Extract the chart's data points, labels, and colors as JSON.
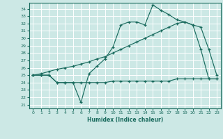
{
  "title": "",
  "xlabel": "Humidex (Indice chaleur)",
  "bg_color": "#cce8e5",
  "line_color": "#1a6b5e",
  "grid_color": "#ffffff",
  "xlim": [
    -0.5,
    23.5
  ],
  "ylim": [
    20.5,
    34.8
  ],
  "yticks": [
    21,
    22,
    23,
    24,
    25,
    26,
    27,
    28,
    29,
    30,
    31,
    32,
    33,
    34
  ],
  "xticks": [
    0,
    1,
    2,
    3,
    4,
    5,
    6,
    7,
    8,
    9,
    10,
    11,
    12,
    13,
    14,
    15,
    16,
    17,
    18,
    19,
    20,
    21,
    22,
    23
  ],
  "series1_x": [
    0,
    1,
    2,
    3,
    4,
    5,
    6,
    7,
    8,
    9,
    10,
    11,
    12,
    13,
    14,
    15,
    16,
    17,
    18,
    19,
    20,
    21,
    22,
    23
  ],
  "series1_y": [
    25.0,
    25.0,
    25.0,
    24.0,
    24.0,
    24.0,
    21.3,
    25.2,
    26.2,
    27.2,
    28.8,
    31.8,
    32.2,
    32.2,
    31.8,
    34.5,
    33.8,
    33.2,
    32.5,
    32.2,
    31.8,
    28.5,
    24.5,
    24.5
  ],
  "series2_x": [
    0,
    1,
    2,
    3,
    4,
    5,
    6,
    7,
    8,
    9,
    10,
    11,
    12,
    13,
    14,
    15,
    16,
    17,
    18,
    19,
    20,
    21,
    22,
    23
  ],
  "series2_y": [
    25.0,
    25.2,
    25.5,
    25.8,
    26.0,
    26.2,
    26.5,
    26.8,
    27.2,
    27.5,
    28.0,
    28.5,
    29.0,
    29.5,
    30.0,
    30.5,
    31.0,
    31.5,
    32.0,
    32.2,
    31.8,
    31.5,
    28.5,
    25.0
  ],
  "series3_x": [
    0,
    1,
    2,
    3,
    4,
    5,
    6,
    7,
    8,
    9,
    10,
    11,
    12,
    13,
    14,
    15,
    16,
    17,
    18,
    19,
    20,
    21,
    22,
    23
  ],
  "series3_y": [
    25.0,
    25.0,
    25.0,
    24.0,
    24.0,
    24.0,
    24.0,
    24.0,
    24.0,
    24.0,
    24.2,
    24.2,
    24.2,
    24.2,
    24.2,
    24.2,
    24.2,
    24.2,
    24.5,
    24.5,
    24.5,
    24.5,
    24.5,
    24.5
  ]
}
